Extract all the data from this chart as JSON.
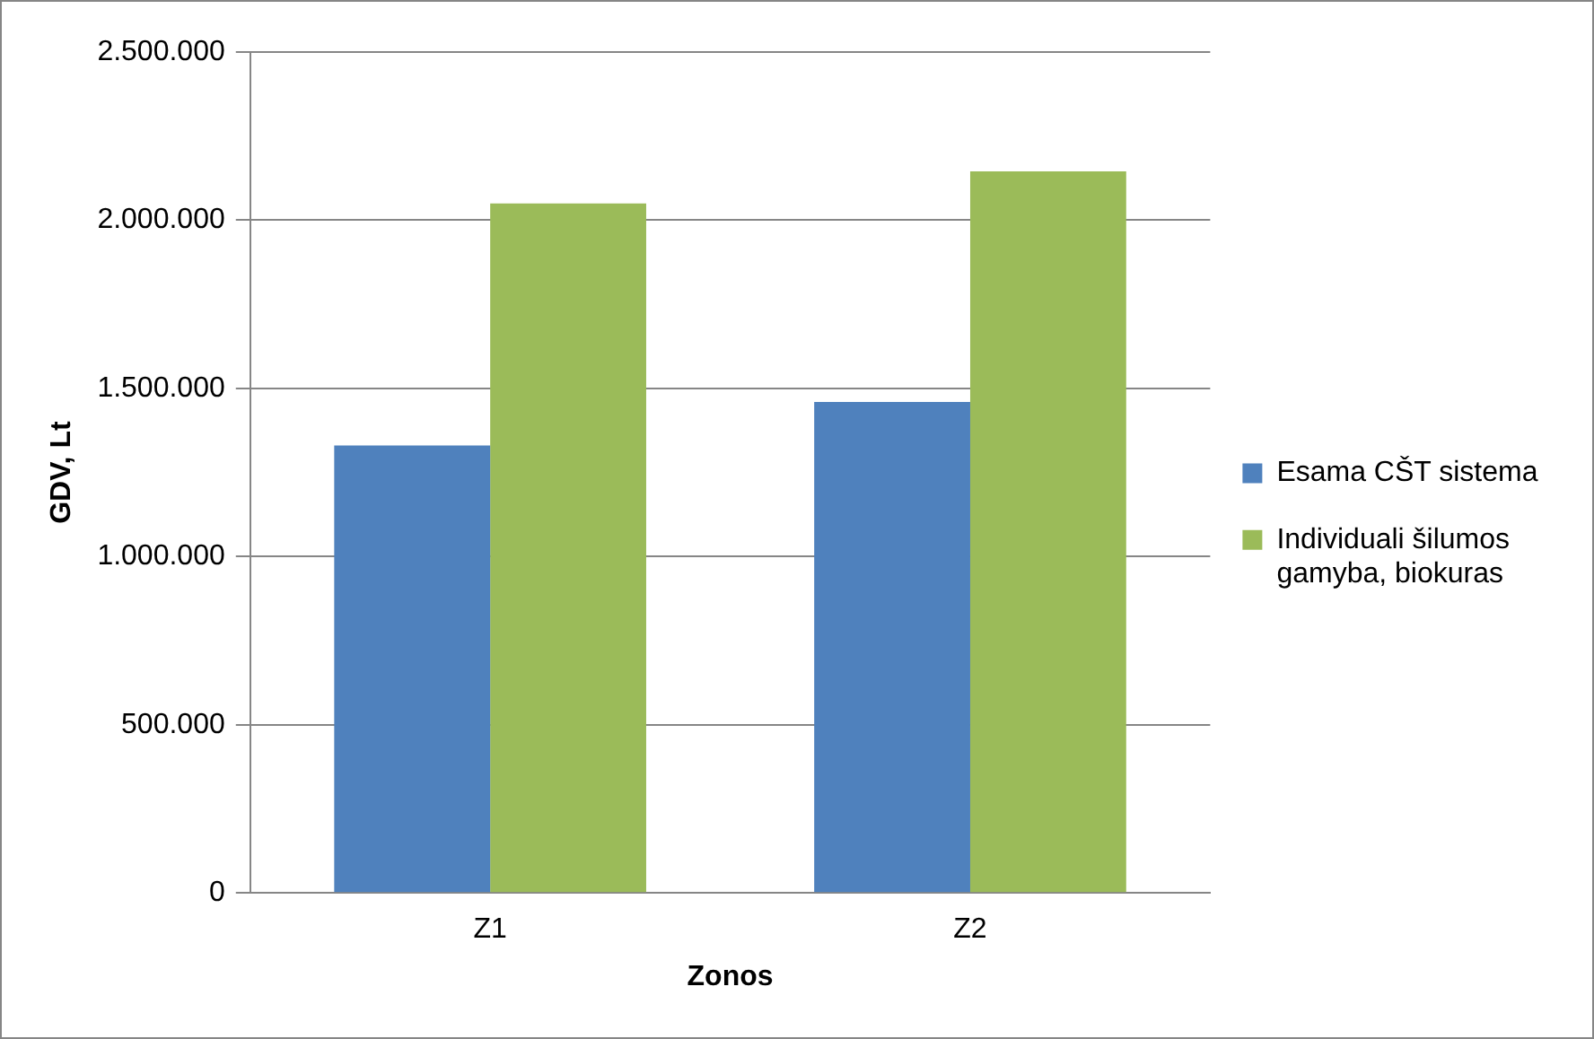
{
  "chart_data": {
    "type": "bar",
    "xlabel": "Zonos",
    "ylabel": "GDV, Lt",
    "categories": [
      "Z1",
      "Z2"
    ],
    "series": [
      {
        "name": "Esama CŠT sistema",
        "color": "#4f81bd",
        "values": [
          1330000,
          1460000
        ]
      },
      {
        "name": "Individuali šilumos gamyba, biokuras",
        "color": "#9bbb59",
        "values": [
          2050000,
          2145000
        ]
      }
    ],
    "ylim": [
      0,
      2500000
    ],
    "yticks": [
      {
        "value": 0,
        "label": "0"
      },
      {
        "value": 500000,
        "label": "500.000"
      },
      {
        "value": 1000000,
        "label": "1.000.000"
      },
      {
        "value": 1500000,
        "label": "1.500.000"
      },
      {
        "value": 2000000,
        "label": "2.000.000"
      },
      {
        "value": 2500000,
        "label": "2.500.000"
      }
    ],
    "grid": "y",
    "legend": "right"
  }
}
